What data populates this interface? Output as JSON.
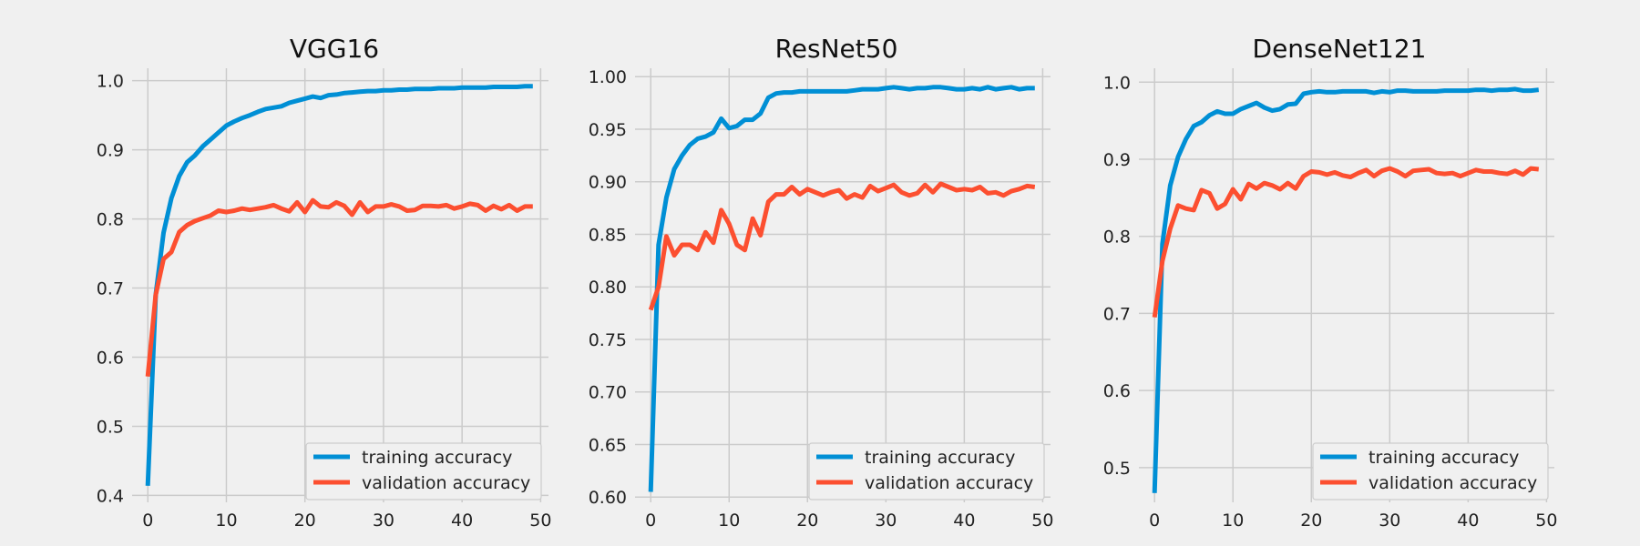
{
  "chart_data": [
    {
      "type": "line",
      "title": "VGG16",
      "xlim": [
        -2,
        51
      ],
      "ylim": [
        0.39,
        1.018
      ],
      "xticks": [
        0,
        10,
        20,
        30,
        40,
        50
      ],
      "yticks": [
        0.4,
        0.5,
        0.6,
        0.7,
        0.8,
        0.9,
        1.0
      ],
      "ytick_labels": [
        "0.4",
        "0.5",
        "0.6",
        "0.7",
        "0.8",
        "0.9",
        "1.0"
      ],
      "grid": true,
      "legend_position": "lower-right",
      "series": [
        {
          "name": "training accuracy",
          "color": "#008fd5",
          "values": [
            0.414,
            0.69,
            0.78,
            0.83,
            0.862,
            0.882,
            0.892,
            0.905,
            0.915,
            0.925,
            0.935,
            0.941,
            0.946,
            0.95,
            0.955,
            0.959,
            0.961,
            0.963,
            0.968,
            0.971,
            0.974,
            0.977,
            0.975,
            0.979,
            0.98,
            0.982,
            0.983,
            0.984,
            0.985,
            0.985,
            0.986,
            0.986,
            0.987,
            0.987,
            0.988,
            0.988,
            0.988,
            0.989,
            0.989,
            0.989,
            0.99,
            0.99,
            0.99,
            0.99,
            0.991,
            0.991,
            0.991,
            0.991,
            0.992,
            0.992
          ]
        },
        {
          "name": "validation accuracy",
          "color": "#fc4f30",
          "values": [
            0.572,
            0.69,
            0.742,
            0.752,
            0.781,
            0.791,
            0.797,
            0.801,
            0.805,
            0.812,
            0.81,
            0.812,
            0.815,
            0.813,
            0.815,
            0.817,
            0.82,
            0.815,
            0.811,
            0.824,
            0.81,
            0.827,
            0.818,
            0.817,
            0.824,
            0.819,
            0.806,
            0.824,
            0.81,
            0.818,
            0.818,
            0.821,
            0.818,
            0.812,
            0.813,
            0.819,
            0.819,
            0.818,
            0.82,
            0.815,
            0.818,
            0.822,
            0.82,
            0.812,
            0.819,
            0.814,
            0.82,
            0.812,
            0.818,
            0.818
          ]
        }
      ]
    },
    {
      "type": "line",
      "title": "ResNet50",
      "xlim": [
        -2,
        51
      ],
      "ylim": [
        0.595,
        1.008
      ],
      "xticks": [
        0,
        10,
        20,
        30,
        40,
        50
      ],
      "yticks": [
        0.6,
        0.65,
        0.7,
        0.75,
        0.8,
        0.85,
        0.9,
        0.95,
        1.0
      ],
      "ytick_labels": [
        "0.60",
        "0.65",
        "0.70",
        "0.75",
        "0.80",
        "0.85",
        "0.90",
        "0.95",
        "1.00"
      ],
      "grid": true,
      "legend_position": "lower-right",
      "series": [
        {
          "name": "training accuracy",
          "color": "#008fd5",
          "values": [
            0.605,
            0.84,
            0.885,
            0.912,
            0.925,
            0.935,
            0.941,
            0.943,
            0.947,
            0.96,
            0.951,
            0.953,
            0.959,
            0.959,
            0.965,
            0.98,
            0.984,
            0.985,
            0.985,
            0.986,
            0.986,
            0.986,
            0.986,
            0.986,
            0.986,
            0.986,
            0.987,
            0.988,
            0.988,
            0.988,
            0.989,
            0.99,
            0.989,
            0.988,
            0.989,
            0.989,
            0.99,
            0.99,
            0.989,
            0.988,
            0.988,
            0.989,
            0.988,
            0.99,
            0.988,
            0.989,
            0.99,
            0.988,
            0.989,
            0.989
          ]
        },
        {
          "name": "validation accuracy",
          "color": "#fc4f30",
          "values": [
            0.778,
            0.8,
            0.848,
            0.83,
            0.84,
            0.84,
            0.835,
            0.852,
            0.842,
            0.873,
            0.86,
            0.84,
            0.835,
            0.865,
            0.849,
            0.881,
            0.888,
            0.888,
            0.895,
            0.888,
            0.893,
            0.89,
            0.887,
            0.89,
            0.892,
            0.884,
            0.888,
            0.885,
            0.896,
            0.891,
            0.894,
            0.897,
            0.89,
            0.887,
            0.889,
            0.897,
            0.89,
            0.898,
            0.895,
            0.892,
            0.893,
            0.892,
            0.895,
            0.889,
            0.89,
            0.887,
            0.891,
            0.893,
            0.896,
            0.895
          ]
        }
      ]
    },
    {
      "type": "line",
      "title": "DenseNet121",
      "xlim": [
        -2,
        51
      ],
      "ylim": [
        0.455,
        1.018
      ],
      "xticks": [
        0,
        10,
        20,
        30,
        40,
        50
      ],
      "yticks": [
        0.5,
        0.6,
        0.7,
        0.8,
        0.9,
        1.0
      ],
      "ytick_labels": [
        "0.5",
        "0.6",
        "0.7",
        "0.8",
        "0.9",
        "1.0"
      ],
      "grid": true,
      "legend_position": "lower-right",
      "series": [
        {
          "name": "training accuracy",
          "color": "#008fd5",
          "values": [
            0.467,
            0.79,
            0.866,
            0.903,
            0.926,
            0.943,
            0.948,
            0.957,
            0.962,
            0.959,
            0.959,
            0.965,
            0.969,
            0.973,
            0.967,
            0.963,
            0.965,
            0.971,
            0.972,
            0.985,
            0.987,
            0.988,
            0.987,
            0.987,
            0.988,
            0.988,
            0.988,
            0.988,
            0.986,
            0.988,
            0.987,
            0.989,
            0.989,
            0.988,
            0.988,
            0.988,
            0.988,
            0.989,
            0.989,
            0.989,
            0.989,
            0.99,
            0.99,
            0.989,
            0.99,
            0.99,
            0.991,
            0.989,
            0.989,
            0.99
          ]
        },
        {
          "name": "validation accuracy",
          "color": "#fc4f30",
          "values": [
            0.695,
            0.768,
            0.81,
            0.84,
            0.836,
            0.834,
            0.86,
            0.856,
            0.836,
            0.842,
            0.861,
            0.848,
            0.868,
            0.862,
            0.869,
            0.866,
            0.861,
            0.869,
            0.862,
            0.878,
            0.884,
            0.883,
            0.88,
            0.883,
            0.879,
            0.877,
            0.882,
            0.886,
            0.878,
            0.885,
            0.888,
            0.884,
            0.878,
            0.885,
            0.886,
            0.887,
            0.882,
            0.881,
            0.882,
            0.878,
            0.882,
            0.886,
            0.884,
            0.884,
            0.882,
            0.881,
            0.885,
            0.88,
            0.888,
            0.887
          ]
        }
      ]
    }
  ]
}
